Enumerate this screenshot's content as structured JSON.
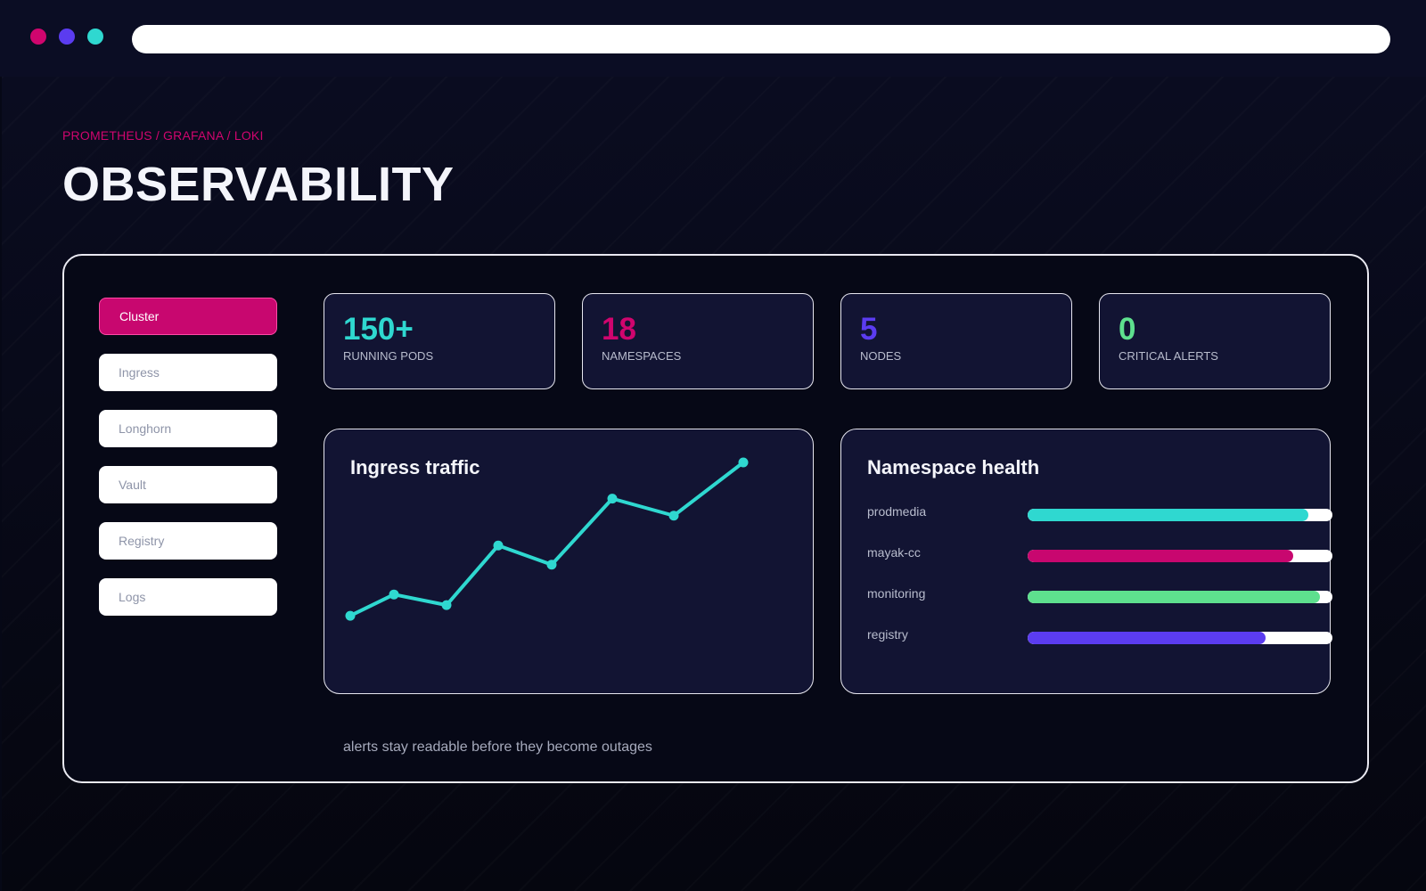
{
  "window": {
    "controls": [
      "close-dot",
      "minimize-dot",
      "maximize-dot"
    ],
    "control_colors": [
      "#d0056e",
      "#5b3cf0",
      "#2fd8d0"
    ]
  },
  "header": {
    "breadcrumb": "PROMETHEUS / GRAFANA / LOKI",
    "title": "OBSERVABILITY"
  },
  "sidebar": {
    "items": [
      {
        "label": "Cluster",
        "active": true
      },
      {
        "label": "Ingress",
        "active": false
      },
      {
        "label": "Longhorn",
        "active": false
      },
      {
        "label": "Vault",
        "active": false
      },
      {
        "label": "Registry",
        "active": false
      },
      {
        "label": "Logs",
        "active": false
      }
    ]
  },
  "stats": [
    {
      "value": "150+",
      "label": "RUNNING PODS",
      "color": "#2fd8d0"
    },
    {
      "value": "18",
      "label": "NAMESPACES",
      "color": "#d0056e"
    },
    {
      "value": "5",
      "label": "NODES",
      "color": "#5b3cf0"
    },
    {
      "value": "0",
      "label": "CRITICAL ALERTS",
      "color": "#5ee08e"
    }
  ],
  "traffic": {
    "title": "Ingress traffic",
    "color": "#2fd8d0"
  },
  "chart_data": {
    "type": "line",
    "title": "Ingress traffic",
    "xlabel": "",
    "ylabel": "",
    "grid": false,
    "series": [
      {
        "values": [
          1,
          2,
          1.5,
          4.3,
          3.4,
          6.5,
          5.7,
          8.2
        ]
      }
    ],
    "ylim": [
      0,
      8.2
    ]
  },
  "health": {
    "title": "Namespace health",
    "rows": [
      {
        "name": "prodmedia",
        "value": 0.92,
        "color": "#2fd8d0"
      },
      {
        "name": "mayak-cc",
        "value": 0.87,
        "color": "#c8076f"
      },
      {
        "name": "monitoring",
        "value": 0.96,
        "color": "#5ee08e"
      },
      {
        "name": "registry",
        "value": 0.78,
        "color": "#5b3cf0"
      }
    ]
  },
  "footer": {
    "note": "alerts stay readable before they become outages"
  }
}
